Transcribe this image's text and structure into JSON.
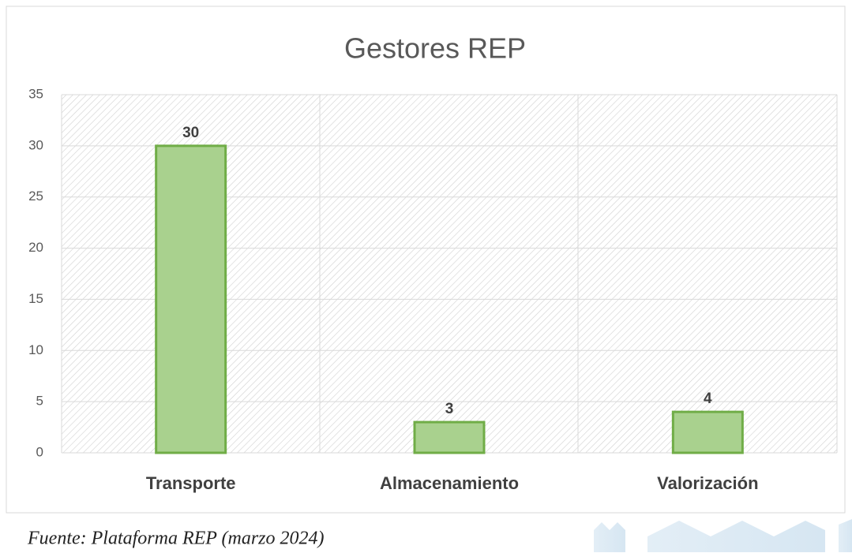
{
  "chart_data": {
    "type": "bar",
    "title": "Gestores REP",
    "categories": [
      "Transporte",
      "Almacenamiento",
      "Valorización"
    ],
    "values": [
      30,
      3,
      4
    ],
    "color": "#a9d18e",
    "edge_color": "#70ad47",
    "ylim": [
      0,
      35
    ],
    "yticks": [
      0,
      5,
      10,
      15,
      20,
      25,
      30,
      35
    ],
    "grid": true,
    "data_labels": true
  },
  "caption": "Fuente: Plataforma REP (marzo 2024)"
}
